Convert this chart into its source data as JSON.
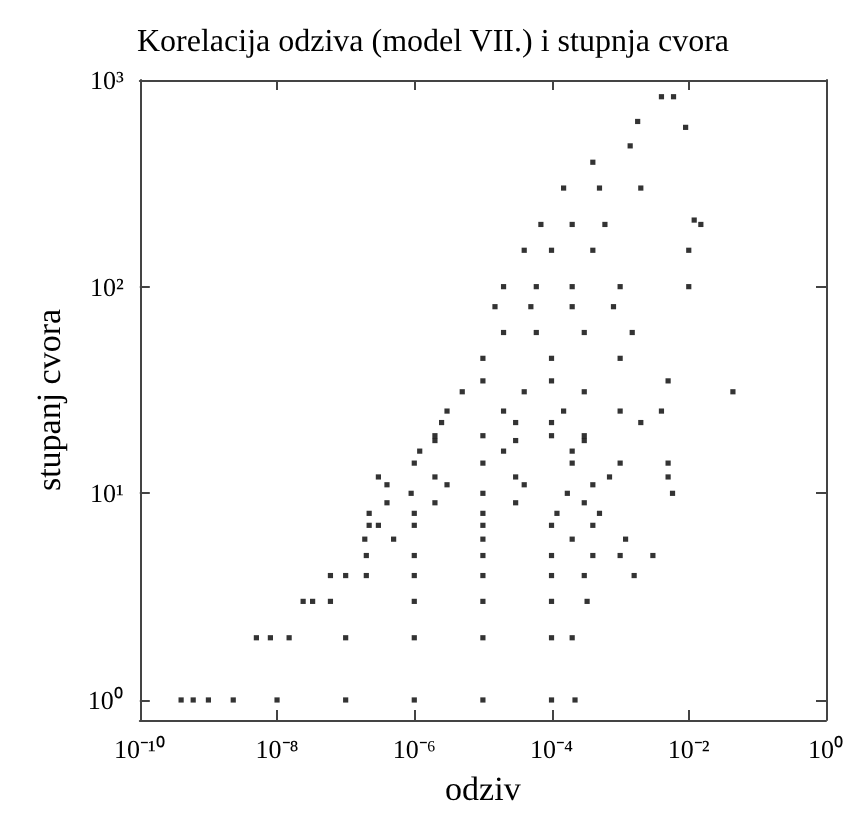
{
  "chart_data": {
    "type": "scatter",
    "title": "Korelacija odziva (model VII.) i stupnja cvora",
    "xlabel": "odziv",
    "ylabel": "stupanj cvora",
    "log": "xy",
    "grid": false,
    "marker": "square",
    "xlim": [
      1e-10,
      1
    ],
    "ylim": [
      0.8,
      1000
    ],
    "xticks": [
      {
        "value": 1e-10,
        "label": "10⁻¹⁰"
      },
      {
        "value": 1e-08,
        "label": "10⁻⁸"
      },
      {
        "value": 1e-06,
        "label": "10⁻⁶"
      },
      {
        "value": 0.0001,
        "label": "10⁻⁴"
      },
      {
        "value": 0.01,
        "label": "10⁻²"
      },
      {
        "value": 1,
        "label": "10⁰"
      }
    ],
    "yticks": [
      {
        "value": 1,
        "label": "10⁰"
      },
      {
        "value": 10,
        "label": "10¹"
      },
      {
        "value": 100,
        "label": "10²"
      },
      {
        "value": 1000,
        "label": "10³"
      }
    ],
    "series": [
      {
        "color": "#000000",
        "x": [
          4e-10,
          6e-10,
          1e-09,
          2.3e-09,
          1e-08,
          1e-07,
          1e-06,
          1e-05,
          0.0001,
          0.00022,
          5e-09,
          8e-09,
          1.5e-08,
          1e-07,
          1e-06,
          1e-05,
          0.0001,
          0.0002,
          2.4e-08,
          3.3e-08,
          6e-08,
          1e-06,
          1e-05,
          0.0001,
          0.00033,
          6e-08,
          1e-07,
          2e-07,
          1e-06,
          1e-05,
          0.0001,
          0.0003,
          0.0016,
          2e-07,
          1e-06,
          1e-05,
          0.0001,
          0.0004,
          0.001,
          0.003,
          1.9e-07,
          5e-07,
          1e-05,
          0.0002,
          0.0012,
          2.2e-07,
          3e-07,
          1e-06,
          1e-05,
          0.0001,
          0.0004,
          2.2e-07,
          1e-06,
          1e-05,
          0.00012,
          0.0005,
          4e-07,
          2e-06,
          3e-05,
          0.0003,
          9e-07,
          1e-05,
          0.00017,
          0.0058,
          4e-07,
          3e-06,
          4e-05,
          0.0004,
          3e-07,
          2e-06,
          3e-05,
          0.0007,
          0.005,
          1e-06,
          1e-05,
          0.0002,
          0.001,
          0.005,
          1.2e-06,
          2e-05,
          0.0002,
          2e-06,
          3e-05,
          0.0003,
          2e-06,
          1e-05,
          0.0001,
          0.0003,
          2.5e-06,
          3e-05,
          0.0001,
          0.002,
          3e-06,
          2e-05,
          0.00015,
          0.001,
          0.004,
          0.044,
          5e-06,
          4e-05,
          0.0003,
          0.005,
          1e-05,
          0.0001,
          1e-05,
          0.0001,
          0.001,
          2e-05,
          6e-05,
          0.0003,
          0.0015,
          1.5e-05,
          5e-05,
          0.0002,
          0.0008,
          2e-05,
          6e-05,
          0.0002,
          0.001,
          0.01,
          4e-05,
          0.0001,
          0.0004,
          0.01,
          7e-05,
          0.0002,
          0.0006,
          0.015,
          0.00015,
          0.0005,
          0.002,
          0.0004,
          0.0014,
          0.0018,
          0.004,
          0.006,
          0.009,
          0.012
        ],
        "values": [
          1,
          1,
          1,
          1,
          1,
          1,
          1,
          1,
          1,
          1,
          2,
          2,
          2,
          2,
          2,
          2,
          2,
          2,
          3,
          3,
          3,
          3,
          3,
          3,
          3,
          4,
          4,
          4,
          4,
          4,
          4,
          4,
          4,
          5,
          5,
          5,
          5,
          5,
          5,
          5,
          6,
          6,
          6,
          6,
          6,
          7,
          7,
          7,
          7,
          7,
          7,
          8,
          8,
          8,
          8,
          8,
          9,
          9,
          9,
          9,
          10,
          10,
          10,
          10,
          11,
          11,
          11,
          11,
          12,
          12,
          12,
          12,
          12,
          14,
          14,
          14,
          14,
          14,
          16,
          16,
          16,
          18,
          18,
          18,
          19,
          19,
          19,
          19,
          22,
          22,
          22,
          22,
          25,
          25,
          25,
          25,
          25,
          31,
          31,
          31,
          31,
          35,
          35,
          35,
          45,
          45,
          45,
          60,
          60,
          60,
          60,
          80,
          80,
          80,
          80,
          100,
          100,
          100,
          100,
          100,
          150,
          150,
          150,
          150,
          200,
          200,
          200,
          200,
          300,
          300,
          300,
          400,
          480,
          630,
          830,
          830,
          590,
          210
        ]
      }
    ]
  }
}
